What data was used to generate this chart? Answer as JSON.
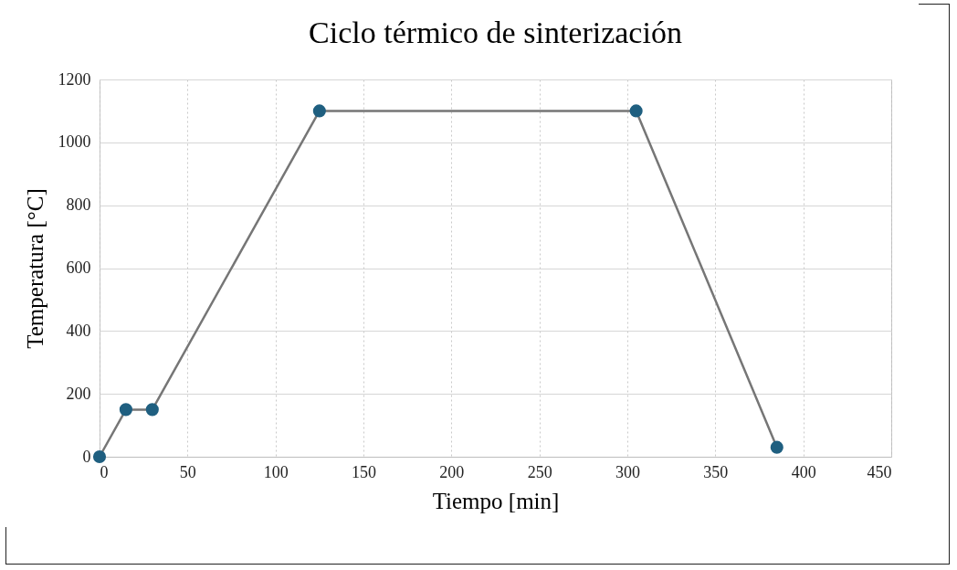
{
  "chart_data": {
    "type": "line",
    "title": "Ciclo térmico de sinterización",
    "xlabel": "Tiempo [min]",
    "ylabel": "Temperatura [°C]",
    "x": [
      0,
      15,
      30,
      125,
      305,
      385
    ],
    "series": [
      {
        "color": "#767676",
        "values": [
          0,
          150,
          150,
          1100,
          1100,
          30
        ]
      },
      {
        "type": "scatter",
        "color": "#1f5f80",
        "values": [
          0,
          150,
          150,
          1100,
          1100,
          30
        ]
      }
    ],
    "xlim": [
      0,
      450
    ],
    "xticks": [
      0,
      50,
      100,
      150,
      200,
      250,
      300,
      350,
      400,
      450
    ],
    "ylim": [
      0,
      1200
    ],
    "yticks": [
      0,
      200,
      400,
      600,
      800,
      1000,
      1200
    ],
    "grid": true,
    "line_style": "solid"
  }
}
